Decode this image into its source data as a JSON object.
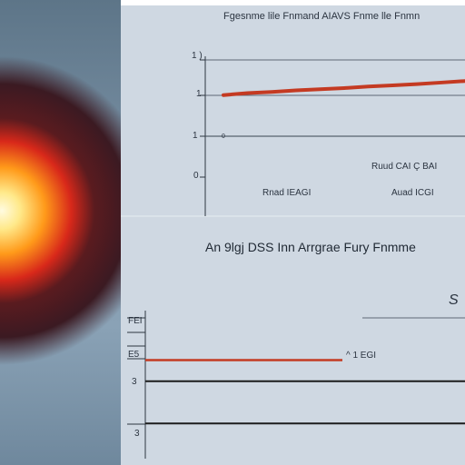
{
  "title": "Fgesnme lile Fnmand AIAVS Fnme lle Fnmn",
  "subtitle": "An 9lgj DSS Inn Arrgrae Fury Fnmme",
  "top_chart": {
    "y_ticks": [
      "1 )",
      "1",
      "1",
      "0"
    ],
    "labels": [
      "Ruud CAI Ç BAI",
      "Rnad IEAGI",
      "Auad ICGI",
      "0"
    ]
  },
  "bottom_chart": {
    "y_ticks": [
      "FEI",
      "E5",
      "3",
      "3"
    ],
    "labels": [
      "^ 1 EGI",
      "S"
    ]
  },
  "colors": {
    "series_red": "#c43a22",
    "series_dark": "#1c1c1c",
    "sun_core": "#fff4c0",
    "sun_ring": "#3a1e1e"
  },
  "chart_data": [
    {
      "type": "line",
      "title": "Fgesnme lile Fnmand AIAVS Fnme lle Fnmn",
      "xlabel": "",
      "ylabel": "",
      "x": [
        0,
        1,
        2,
        3,
        4,
        5,
        6,
        7,
        8,
        9,
        10
      ],
      "ylim": [
        0,
        3
      ],
      "series": [
        {
          "values": [
            2.1,
            2.15,
            2.18,
            2.22,
            2.25,
            2.28,
            2.32,
            2.35,
            2.38,
            2.42,
            2.46
          ]
        }
      ],
      "grid": true
    },
    {
      "type": "line",
      "title": "An 9lgj DSS Inn Arrgrae Fury Fnmme",
      "xlabel": "",
      "ylabel": "",
      "x": [
        0,
        10
      ],
      "ylim": [
        0,
        4
      ],
      "series": [
        {
          "values": [
            2.8,
            2.8
          ]
        },
        {
          "values": [
            2.2,
            2.2
          ]
        },
        {
          "values": [
            1.0,
            1.0
          ]
        }
      ],
      "grid": false
    }
  ]
}
